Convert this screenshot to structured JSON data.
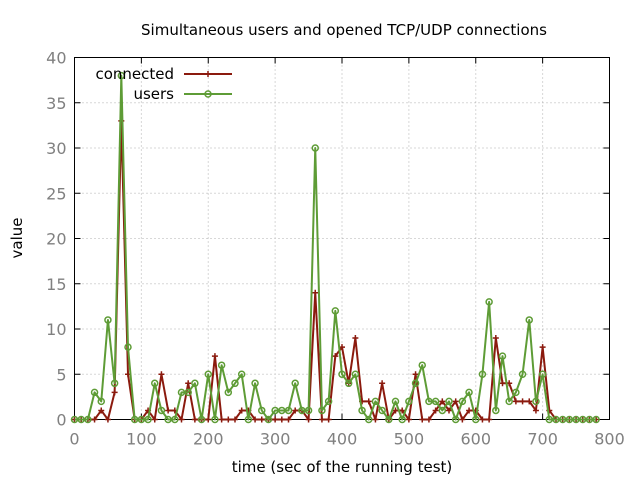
{
  "chart_data": {
    "type": "line",
    "title": "Simultaneous users and opened TCP/UDP connections",
    "xlabel": "time (sec of the running test)",
    "ylabel": "value",
    "xlim": [
      0,
      800
    ],
    "ylim": [
      0,
      40
    ],
    "x_ticks": [
      0,
      100,
      200,
      300,
      400,
      500,
      600,
      700,
      800
    ],
    "y_ticks": [
      0,
      5,
      10,
      15,
      20,
      25,
      30,
      35,
      40
    ],
    "grid": true,
    "legend_position": "top-left",
    "x": [
      0,
      10,
      20,
      30,
      40,
      50,
      60,
      70,
      80,
      90,
      100,
      110,
      120,
      130,
      140,
      150,
      160,
      170,
      180,
      190,
      200,
      210,
      220,
      230,
      240,
      250,
      260,
      270,
      280,
      290,
      300,
      310,
      320,
      330,
      340,
      350,
      360,
      370,
      380,
      390,
      400,
      410,
      420,
      430,
      440,
      450,
      460,
      470,
      480,
      490,
      500,
      510,
      520,
      530,
      540,
      550,
      560,
      570,
      580,
      590,
      600,
      610,
      620,
      630,
      640,
      650,
      660,
      670,
      680,
      690,
      700,
      710,
      720,
      730,
      740,
      750,
      760,
      770,
      780
    ],
    "series": [
      {
        "name": "connected",
        "color": "#8b1a0e",
        "marker": "plus",
        "values": [
          0,
          0,
          0,
          0,
          1,
          0,
          3,
          33,
          5,
          0,
          0,
          1,
          0,
          5,
          1,
          1,
          0,
          4,
          0,
          0,
          0,
          7,
          0,
          0,
          0,
          1,
          1,
          0,
          0,
          0,
          0,
          0,
          0,
          1,
          1,
          0,
          14,
          0,
          0,
          7,
          8,
          4,
          9,
          2,
          2,
          0,
          4,
          0,
          1,
          1,
          0,
          5,
          0,
          0,
          1,
          2,
          1,
          2,
          0,
          1,
          1,
          0,
          0,
          9,
          4,
          4,
          2,
          2,
          2,
          1,
          8,
          1,
          0,
          0,
          0,
          0,
          0,
          0,
          0
        ]
      },
      {
        "name": "users",
        "color": "#5e9c36",
        "marker": "circle",
        "values": [
          0,
          0,
          0,
          3,
          2,
          11,
          4,
          38,
          8,
          0,
          0,
          0,
          4,
          1,
          0,
          0,
          3,
          3,
          4,
          0,
          5,
          0,
          6,
          3,
          4,
          5,
          0,
          4,
          1,
          0,
          1,
          1,
          1,
          4,
          1,
          1,
          30,
          1,
          2,
          12,
          5,
          4,
          5,
          1,
          0,
          2,
          1,
          0,
          2,
          0,
          2,
          4,
          6,
          2,
          2,
          1,
          2,
          0,
          2,
          3,
          0,
          5,
          13,
          1,
          7,
          2,
          3,
          5,
          11,
          2,
          5,
          0,
          0,
          0,
          0,
          0,
          0,
          0,
          0
        ]
      }
    ]
  }
}
